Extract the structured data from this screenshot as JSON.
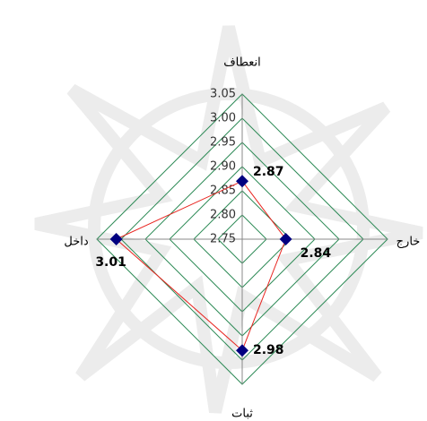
{
  "chart_data": {
    "type": "radar",
    "categories": [
      "انعطاف",
      "خارج",
      "ثبات",
      "داخل"
    ],
    "series": [
      {
        "color": "#e8231e",
        "marker_color": "#000080",
        "values": [
          2.87,
          2.84,
          2.98,
          3.01
        ]
      }
    ],
    "ylim": [
      2.75,
      3.05
    ],
    "yticks": [
      {
        "value": 2.75,
        "label": "2.75"
      },
      {
        "value": 2.8,
        "label": "2.80"
      },
      {
        "value": 2.85,
        "label": "2.85"
      },
      {
        "value": 2.9,
        "label": "2.90"
      },
      {
        "value": 2.95,
        "label": "2.95"
      },
      {
        "value": 3.0,
        "label": "3.00"
      },
      {
        "value": 3.05,
        "label": "3.05"
      }
    ],
    "grid": true,
    "grid_color": "#2e8b57"
  }
}
